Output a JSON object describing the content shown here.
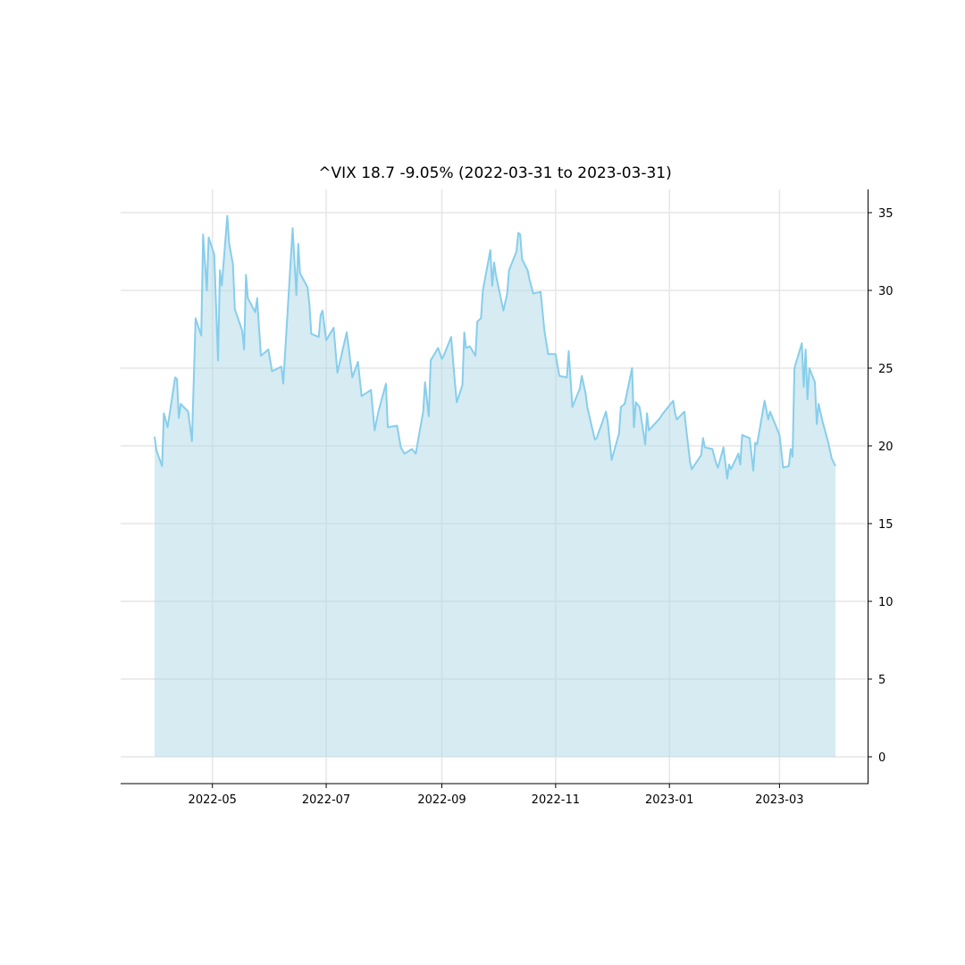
{
  "chart_data": {
    "type": "area",
    "title": "^VIX 18.7 -9.05% (2022-03-31 to 2023-03-31)",
    "ticker": "^VIX",
    "last_value": 18.7,
    "change_pct": "-9.05%",
    "date_range": [
      "2022-03-31",
      "2023-03-31"
    ],
    "xlabel": "",
    "ylabel": "",
    "ylim": [
      -1.8,
      36.5
    ],
    "yaxis_position": "right",
    "grid": true,
    "legend": null,
    "x_ticks": [
      "2022-05",
      "2022-07",
      "2022-09",
      "2022-11",
      "2023-01",
      "2023-03"
    ],
    "y_ticks": [
      0,
      5,
      10,
      15,
      20,
      25,
      30,
      35
    ],
    "colors": {
      "line": "#87ceeb",
      "fill": "#add8e6",
      "fill_alpha": 0.5,
      "grid": "#e6e6e6"
    },
    "series": [
      {
        "name": "^VIX",
        "points": [
          [
            "2022-03-31",
            20.6
          ],
          [
            "2022-04-01",
            19.7
          ],
          [
            "2022-04-04",
            18.7
          ],
          [
            "2022-04-05",
            22.1
          ],
          [
            "2022-04-07",
            21.2
          ],
          [
            "2022-04-11",
            24.4
          ],
          [
            "2022-04-12",
            24.3
          ],
          [
            "2022-04-13",
            21.8
          ],
          [
            "2022-04-14",
            22.7
          ],
          [
            "2022-04-18",
            22.2
          ],
          [
            "2022-04-20",
            20.3
          ],
          [
            "2022-04-22",
            28.2
          ],
          [
            "2022-04-25",
            27.1
          ],
          [
            "2022-04-26",
            33.6
          ],
          [
            "2022-04-28",
            30.0
          ],
          [
            "2022-04-29",
            33.4
          ],
          [
            "2022-05-02",
            32.3
          ],
          [
            "2022-05-04",
            25.5
          ],
          [
            "2022-05-05",
            31.3
          ],
          [
            "2022-05-06",
            30.3
          ],
          [
            "2022-05-09",
            34.8
          ],
          [
            "2022-05-10",
            33.0
          ],
          [
            "2022-05-12",
            31.7
          ],
          [
            "2022-05-13",
            28.8
          ],
          [
            "2022-05-17",
            27.4
          ],
          [
            "2022-05-18",
            26.2
          ],
          [
            "2022-05-19",
            31.0
          ],
          [
            "2022-05-20",
            29.5
          ],
          [
            "2022-05-24",
            28.6
          ],
          [
            "2022-05-25",
            29.5
          ],
          [
            "2022-05-26",
            27.6
          ],
          [
            "2022-05-27",
            25.8
          ],
          [
            "2022-05-31",
            26.2
          ],
          [
            "2022-06-02",
            24.8
          ],
          [
            "2022-06-07",
            25.1
          ],
          [
            "2022-06-08",
            24.0
          ],
          [
            "2022-06-13",
            34.0
          ],
          [
            "2022-06-15",
            29.7
          ],
          [
            "2022-06-16",
            33.0
          ],
          [
            "2022-06-17",
            31.1
          ],
          [
            "2022-06-21",
            30.2
          ],
          [
            "2022-06-22",
            29.1
          ],
          [
            "2022-06-23",
            27.2
          ],
          [
            "2022-06-27",
            27.0
          ],
          [
            "2022-06-28",
            28.4
          ],
          [
            "2022-06-29",
            28.7
          ],
          [
            "2022-07-01",
            26.8
          ],
          [
            "2022-07-05",
            27.6
          ],
          [
            "2022-07-07",
            24.7
          ],
          [
            "2022-07-12",
            27.3
          ],
          [
            "2022-07-13",
            26.4
          ],
          [
            "2022-07-15",
            24.4
          ],
          [
            "2022-07-18",
            25.4
          ],
          [
            "2022-07-20",
            23.2
          ],
          [
            "2022-07-25",
            23.6
          ],
          [
            "2022-07-27",
            21.0
          ],
          [
            "2022-07-29",
            22.2
          ],
          [
            "2022-08-02",
            24.0
          ],
          [
            "2022-08-03",
            21.2
          ],
          [
            "2022-08-08",
            21.3
          ],
          [
            "2022-08-10",
            19.9
          ],
          [
            "2022-08-12",
            19.5
          ],
          [
            "2022-08-16",
            19.8
          ],
          [
            "2022-08-18",
            19.5
          ],
          [
            "2022-08-22",
            22.2
          ],
          [
            "2022-08-23",
            24.1
          ],
          [
            "2022-08-25",
            21.9
          ],
          [
            "2022-08-26",
            25.5
          ],
          [
            "2022-08-30",
            26.3
          ],
          [
            "2022-09-01",
            25.6
          ],
          [
            "2022-09-02",
            25.8
          ],
          [
            "2022-09-06",
            27.0
          ],
          [
            "2022-09-08",
            24.1
          ],
          [
            "2022-09-09",
            22.8
          ],
          [
            "2022-09-12",
            23.9
          ],
          [
            "2022-09-13",
            27.3
          ],
          [
            "2022-09-14",
            26.3
          ],
          [
            "2022-09-16",
            26.4
          ],
          [
            "2022-09-19",
            25.8
          ],
          [
            "2022-09-20",
            28.0
          ],
          [
            "2022-09-22",
            28.2
          ],
          [
            "2022-09-23",
            30.0
          ],
          [
            "2022-09-27",
            32.6
          ],
          [
            "2022-09-28",
            30.3
          ],
          [
            "2022-09-29",
            31.8
          ],
          [
            "2022-09-30",
            31.0
          ],
          [
            "2022-10-04",
            28.7
          ],
          [
            "2022-10-06",
            29.8
          ],
          [
            "2022-10-07",
            31.3
          ],
          [
            "2022-10-11",
            32.5
          ],
          [
            "2022-10-12",
            33.7
          ],
          [
            "2022-10-13",
            33.6
          ],
          [
            "2022-10-14",
            32.0
          ],
          [
            "2022-10-17",
            31.3
          ],
          [
            "2022-10-18",
            30.7
          ],
          [
            "2022-10-20",
            29.8
          ],
          [
            "2022-10-24",
            29.9
          ],
          [
            "2022-10-26",
            27.4
          ],
          [
            "2022-10-28",
            25.9
          ],
          [
            "2022-11-01",
            25.9
          ],
          [
            "2022-11-03",
            24.5
          ],
          [
            "2022-11-07",
            24.4
          ],
          [
            "2022-11-08",
            26.1
          ],
          [
            "2022-11-10",
            22.5
          ],
          [
            "2022-11-14",
            23.7
          ],
          [
            "2022-11-15",
            24.5
          ],
          [
            "2022-11-17",
            23.4
          ],
          [
            "2022-11-18",
            22.5
          ],
          [
            "2022-11-22",
            20.4
          ],
          [
            "2022-11-23",
            20.5
          ],
          [
            "2022-11-28",
            22.2
          ],
          [
            "2022-11-29",
            21.5
          ],
          [
            "2022-12-01",
            19.1
          ],
          [
            "2022-12-05",
            20.8
          ],
          [
            "2022-12-06",
            22.5
          ],
          [
            "2022-12-08",
            22.7
          ],
          [
            "2022-12-12",
            25.0
          ],
          [
            "2022-12-13",
            21.2
          ],
          [
            "2022-12-14",
            22.8
          ],
          [
            "2022-12-16",
            22.5
          ],
          [
            "2022-12-19",
            20.1
          ],
          [
            "2022-12-20",
            22.1
          ],
          [
            "2022-12-21",
            21.0
          ],
          [
            "2022-12-27",
            21.8
          ],
          [
            "2022-12-28",
            22.0
          ],
          [
            "2023-01-03",
            22.9
          ],
          [
            "2023-01-04",
            22.1
          ],
          [
            "2023-01-05",
            21.7
          ],
          [
            "2023-01-09",
            22.2
          ],
          [
            "2023-01-10",
            21.1
          ],
          [
            "2023-01-12",
            19.0
          ],
          [
            "2023-01-13",
            18.5
          ],
          [
            "2023-01-18",
            19.4
          ],
          [
            "2023-01-19",
            20.5
          ],
          [
            "2023-01-20",
            19.9
          ],
          [
            "2023-01-24",
            19.8
          ],
          [
            "2023-01-26",
            18.9
          ],
          [
            "2023-01-27",
            18.6
          ],
          [
            "2023-01-30",
            19.9
          ],
          [
            "2023-02-01",
            17.9
          ],
          [
            "2023-02-02",
            18.8
          ],
          [
            "2023-02-03",
            18.5
          ],
          [
            "2023-02-07",
            19.5
          ],
          [
            "2023-02-08",
            18.8
          ],
          [
            "2023-02-09",
            20.7
          ],
          [
            "2023-02-13",
            20.5
          ],
          [
            "2023-02-15",
            18.4
          ],
          [
            "2023-02-16",
            20.2
          ],
          [
            "2023-02-17",
            20.1
          ],
          [
            "2023-02-21",
            22.9
          ],
          [
            "2023-02-23",
            21.7
          ],
          [
            "2023-02-24",
            22.2
          ],
          [
            "2023-03-01",
            20.7
          ],
          [
            "2023-03-03",
            18.6
          ],
          [
            "2023-03-06",
            18.7
          ],
          [
            "2023-03-07",
            19.8
          ],
          [
            "2023-03-08",
            19.3
          ],
          [
            "2023-03-09",
            25.0
          ],
          [
            "2023-03-13",
            26.6
          ],
          [
            "2023-03-14",
            23.8
          ],
          [
            "2023-03-15",
            26.2
          ],
          [
            "2023-03-16",
            23.0
          ],
          [
            "2023-03-17",
            25.0
          ],
          [
            "2023-03-20",
            24.1
          ],
          [
            "2023-03-21",
            21.4
          ],
          [
            "2023-03-22",
            22.7
          ],
          [
            "2023-03-24",
            21.6
          ],
          [
            "2023-03-27",
            20.3
          ],
          [
            "2023-03-29",
            19.2
          ],
          [
            "2023-03-31",
            18.7
          ]
        ]
      }
    ]
  }
}
